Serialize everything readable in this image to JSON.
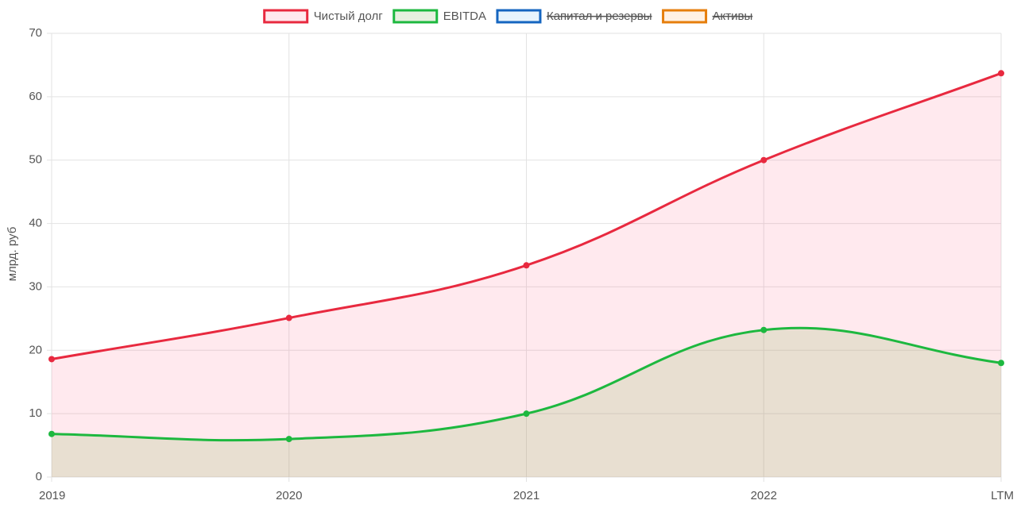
{
  "chart_data": {
    "type": "line",
    "y_label": "млрд. руб",
    "categories": [
      "2019",
      "2020",
      "2021",
      "2022",
      "LTM"
    ],
    "series": [
      {
        "name": "Чистый долг",
        "color": "#e8293f",
        "fill": "rgba(255,99,132,0.14)",
        "values": [
          18.6,
          25.1,
          33.4,
          50,
          63.7
        ]
      },
      {
        "name": "EBITDA",
        "color": "#1db83f",
        "fill": "rgba(150,185,110,0.22)",
        "values": [
          6.8,
          6.0,
          10.0,
          23.2,
          18.0
        ]
      },
      {
        "name": "Капитал и резервы",
        "color": "#1565c0",
        "fill": "rgba(54,162,235,0.12)",
        "hidden": true
      },
      {
        "name": "Активы",
        "color": "#e67e0c",
        "fill": "rgba(255,159,64,0.14)",
        "hidden": true
      }
    ],
    "ylim": [
      0,
      70
    ],
    "yticks": [
      0,
      10,
      20,
      30,
      40,
      50,
      60,
      70
    ],
    "grid": true,
    "legend": "top"
  }
}
